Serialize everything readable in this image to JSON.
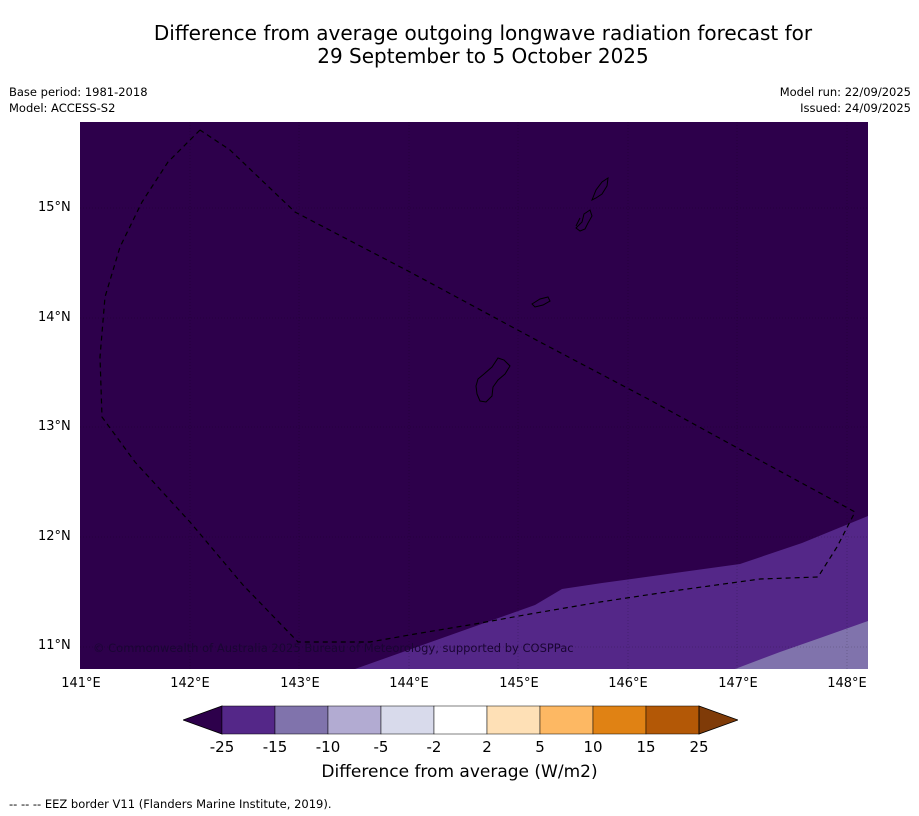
{
  "header": {
    "title_line1": "Difference from average outgoing longwave radiation forecast for",
    "title_line2": "29 September to 5 October 2025",
    "base_period": "Base period: 1981-2018",
    "model": "Model: ACCESS-S2",
    "model_run": "Model run: 22/09/2025",
    "issued": "Issued: 24/09/2025"
  },
  "map": {
    "lat_ticks": [
      "15°N",
      "14°N",
      "13°N",
      "12°N",
      "11°N"
    ],
    "lon_ticks": [
      "141°E",
      "142°E",
      "143°E",
      "144°E",
      "145°E",
      "146°E",
      "147°E",
      "148°E"
    ],
    "credit": "© Commonwealth of Australia 2025 Bureau of Meteorology, supported by COSPPac",
    "colors": {
      "band_lt_-25": "#2d004b",
      "band_-25_-15": "#542788",
      "band_-15_-10": "#8073ac"
    }
  },
  "colorbar": {
    "labels": [
      "-25",
      "-15",
      "-10",
      "-5",
      "-2",
      "2",
      "5",
      "10",
      "15",
      "25"
    ],
    "colors": [
      "#2d004b",
      "#542788",
      "#8073ac",
      "#b2abd2",
      "#d8daeb",
      "#ffffff",
      "#fee0b6",
      "#fdb863",
      "#e08214",
      "#b35806",
      "#7f3b08"
    ],
    "title": "Difference from average (W/m2)"
  },
  "footer": {
    "eez_note": "--  --  -- EEZ border V11 (Flanders Marine Institute, 2019)."
  }
}
